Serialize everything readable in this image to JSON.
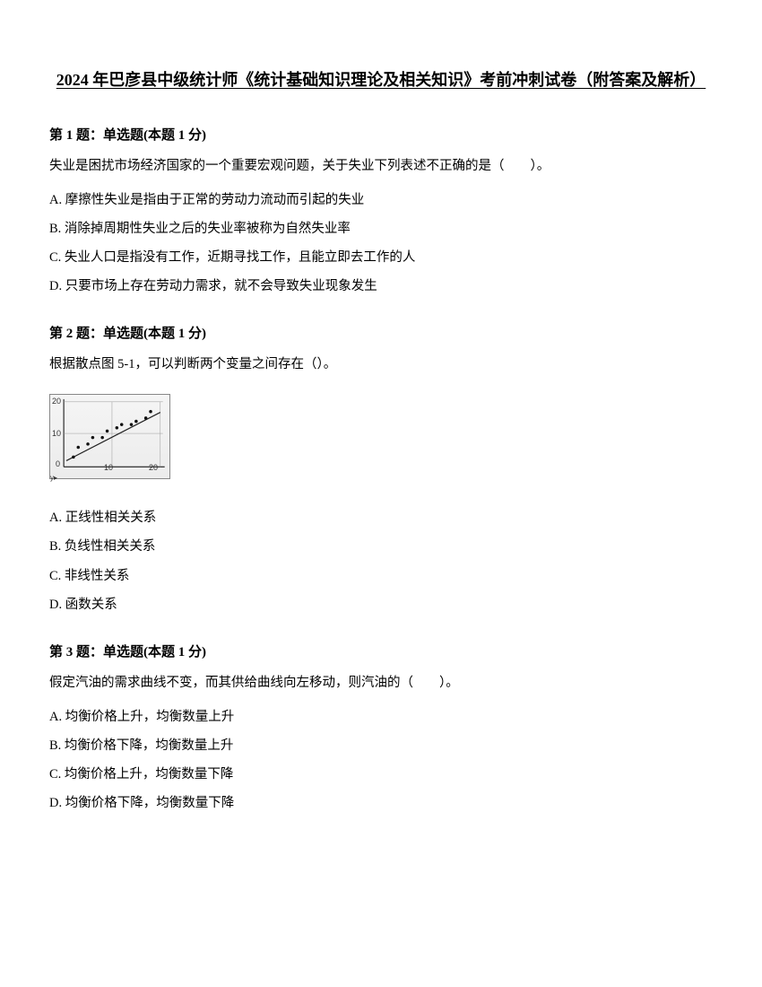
{
  "title": "2024 年巴彦县中级统计师《统计基础知识理论及相关知识》考前冲刺试卷（附答案及解析）",
  "q1": {
    "header": "第 1 题：单选题(本题 1 分)",
    "text": "失业是困扰市场经济国家的一个重要宏观问题，关于失业下列表述不正确的是（　　）。",
    "optA": "A. 摩擦性失业是指由于正常的劳动力流动而引起的失业",
    "optB": "B. 消除掉周期性失业之后的失业率被称为自然失业率",
    "optC": "C. 失业人口是指没有工作，近期寻找工作，且能立即去工作的人",
    "optD": "D. 只要市场上存在劳动力需求，就不会导致失业现象发生"
  },
  "q2": {
    "header": "第 2 题：单选题(本题 1 分)",
    "text": "根据散点图 5-1，可以判断两个变量之间存在（）。",
    "optA": "A. 正线性相关关系",
    "optB": "B. 负线性相关关系",
    "optC": "C. 非线性关系",
    "optD": "D. 函数关系",
    "chart": {
      "type": "scatter",
      "xlim": [
        0,
        20
      ],
      "ylim": [
        0,
        20
      ],
      "ytick_labels": [
        "20",
        "10",
        "0"
      ],
      "xtick_labels": [
        "10",
        "20"
      ],
      "y_caption": "y▸",
      "points": [
        {
          "x": 2,
          "y": 3
        },
        {
          "x": 3,
          "y": 6
        },
        {
          "x": 5,
          "y": 7
        },
        {
          "x": 6,
          "y": 9
        },
        {
          "x": 8,
          "y": 9
        },
        {
          "x": 9,
          "y": 11
        },
        {
          "x": 11,
          "y": 12
        },
        {
          "x": 12,
          "y": 13
        },
        {
          "x": 14,
          "y": 13
        },
        {
          "x": 15,
          "y": 14
        },
        {
          "x": 17,
          "y": 15
        },
        {
          "x": 18,
          "y": 17
        }
      ],
      "point_color": "#111111",
      "line_color": "#222222",
      "background_gradient": [
        "#f5f5f5",
        "#ececec"
      ],
      "border_color": "#888888",
      "axis_color": "#000000"
    }
  },
  "q3": {
    "header": "第 3 题：单选题(本题 1 分)",
    "text": "假定汽油的需求曲线不变，而其供给曲线向左移动，则汽油的（　　）。",
    "optA": "A. 均衡价格上升，均衡数量上升",
    "optB": "B. 均衡价格下降，均衡数量上升",
    "optC": "C. 均衡价格上升，均衡数量下降",
    "optD": "D. 均衡价格下降，均衡数量下降"
  }
}
